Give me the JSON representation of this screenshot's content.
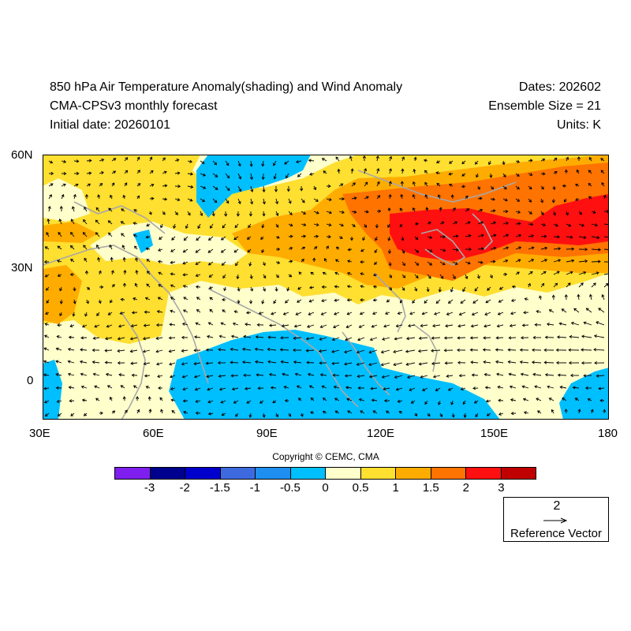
{
  "header": {
    "title_line1": "850 hPa Air Temperature Anomaly(shading) and Wind Anomaly",
    "title_line2": "CMA-CPSv3 monthly forecast",
    "title_line3": "Initial date: 20260101",
    "dates": "Dates: 202602",
    "ensemble": "Ensemble Size = 21",
    "units": "Units: K"
  },
  "map": {
    "lat_ticks": [
      "60N",
      "30N",
      "0"
    ],
    "lon_ticks": [
      "30E",
      "60E",
      "90E",
      "120E",
      "150E",
      "180"
    ],
    "lat_range": [
      -10,
      60
    ],
    "lon_range": [
      30,
      180
    ]
  },
  "colorbar": {
    "colors": [
      "#7f1fef",
      "#00008f",
      "#0000cc",
      "#3d6bdf",
      "#1e8ef0",
      "#00bfff",
      "#ffffcc",
      "#ffdf30",
      "#ffac00",
      "#ff7300",
      "#ff1010",
      "#c00000"
    ],
    "labels": [
      "-3",
      "-2",
      "-1.5",
      "-1",
      "-0.5",
      "0",
      "0.5",
      "1",
      "1.5",
      "2",
      "3"
    ]
  },
  "copyright": "Copyright © CEMC, CMA",
  "reference_vector": {
    "magnitude": "2",
    "label": "Reference Vector"
  }
}
